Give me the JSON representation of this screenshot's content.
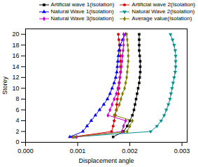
{
  "chart_data": {
    "type": "line",
    "xlabel": "Displacement angle",
    "ylabel": "Storey",
    "xlim": [
      0.0,
      0.0031
    ],
    "ylim": [
      0,
      21
    ],
    "xticks": [
      {
        "value": 0.0,
        "label": "0.000"
      },
      0.001,
      0.002,
      0.003
    ],
    "yticks": [
      0,
      2,
      4,
      6,
      8,
      10,
      12,
      14,
      16,
      18,
      20
    ],
    "grid": false,
    "legend": "upper right",
    "series": [
      {
        "name": "Artificial wave 1(Isolation)",
        "color": "black",
        "marker": "square",
        "x": [
          0.00168,
          0.00188,
          0.00195,
          0.002,
          0.00205,
          0.00208,
          0.0021,
          0.00212,
          0.00214,
          0.00216,
          0.00218,
          0.00219,
          0.0022,
          0.0022,
          0.0022,
          0.00219,
          0.00218,
          0.00218,
          0.00218,
          0.00218
        ],
        "y": [
          1,
          2,
          3,
          4,
          5,
          6,
          7,
          8,
          9,
          10,
          11,
          12,
          13,
          14,
          15,
          16,
          17,
          18,
          19,
          20
        ]
      },
      {
        "name": "Artificial wave 2(Isolation)",
        "color": "#dd0000",
        "marker": "circle",
        "x": [
          0.0009,
          0.00165,
          0.00168,
          0.0017,
          0.00172,
          0.00174,
          0.00175,
          0.00176,
          0.00178,
          0.00179,
          0.0018,
          0.00181,
          0.00182,
          0.00182,
          0.00182,
          0.00182,
          0.00181,
          0.0018,
          0.00179,
          0.00178
        ],
        "y": [
          1,
          2,
          3,
          4,
          5,
          6,
          7,
          8,
          9,
          10,
          11,
          12,
          13,
          14,
          15,
          16,
          17,
          18,
          19,
          20
        ]
      },
      {
        "name": "Natural Wave 1(Isolation)",
        "color": "blue",
        "marker": "triangle-up",
        "x": [
          0.00085,
          0.0011,
          0.00118,
          0.00126,
          0.00134,
          0.00142,
          0.0015,
          0.00157,
          0.00162,
          0.00166,
          0.0017,
          0.00173,
          0.00175,
          0.00176,
          0.00177,
          0.00178,
          0.00179,
          0.00182,
          0.00186,
          0.00192
        ],
        "y": [
          1,
          2,
          3,
          4,
          5,
          6,
          7,
          8,
          9,
          10,
          11,
          12,
          13,
          14,
          15,
          16,
          17,
          18,
          19,
          20
        ]
      },
      {
        "name": "Natural Wave 2(Isolation)",
        "color": "#009090",
        "marker": "triangle-down",
        "x": [
          0.00095,
          0.0024,
          0.00252,
          0.0026,
          0.00266,
          0.0027,
          0.00274,
          0.00277,
          0.00279,
          0.00281,
          0.00283,
          0.00285,
          0.00287,
          0.00288,
          0.00288,
          0.00288,
          0.00287,
          0.00285,
          0.00282,
          0.00278
        ],
        "y": [
          1,
          2,
          3,
          4,
          5,
          6,
          7,
          8,
          9,
          10,
          11,
          12,
          13,
          14,
          15,
          16,
          17,
          18,
          19,
          20
        ]
      },
      {
        "name": "Natural Wave 3(Isolation)",
        "color": "#cc00cc",
        "marker": "diamond",
        "x": [
          0.00098,
          0.00185,
          0.00188,
          0.00192,
          0.00158,
          0.00162,
          0.00166,
          0.0017,
          0.00174,
          0.00177,
          0.00179,
          0.00181,
          0.00183,
          0.00184,
          0.00185,
          0.00186,
          0.00187,
          0.00188,
          0.00188,
          0.00188
        ],
        "y": [
          1,
          2,
          3,
          4,
          5,
          6,
          7,
          8,
          9,
          10,
          11,
          12,
          13,
          14,
          15,
          16,
          17,
          18,
          19,
          20
        ]
      },
      {
        "name": "Average value(Isolation)",
        "color": "#808000",
        "marker": "diamond",
        "x": [
          0.00092,
          0.00195,
          0.002,
          0.00205,
          0.0017,
          0.00175,
          0.0018,
          0.00183,
          0.00186,
          0.0019,
          0.00192,
          0.00194,
          0.00195,
          0.00196,
          0.00197,
          0.00197,
          0.00197,
          0.00196,
          0.00195,
          0.00194
        ],
        "y": [
          1,
          2,
          3,
          4,
          5,
          6,
          7,
          8,
          9,
          10,
          11,
          12,
          13,
          14,
          15,
          16,
          17,
          18,
          19,
          20
        ]
      }
    ]
  }
}
